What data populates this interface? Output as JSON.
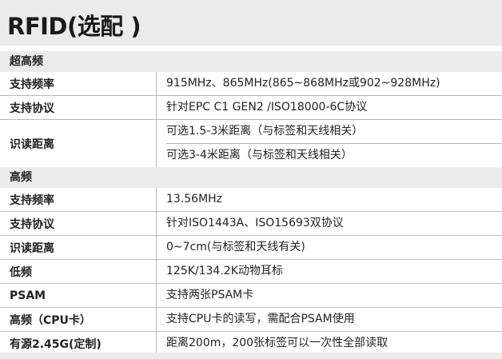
{
  "title": "RFID(选配 )",
  "sections": [
    {
      "header": "超高频",
      "rows": [
        {
          "label": "支持频率",
          "values": [
            "915MHz、865MHz(865~868MHz或902~928MHz)"
          ]
        },
        {
          "label": "支持协议",
          "values": [
            "针对EPC C1 GEN2 /ISO18000-6C协议"
          ]
        },
        {
          "label": "识读距离",
          "values": [
            "可选1.5-3米距离（与标签和天线相关）",
            "可选3-4米距离（与标签和天线相关）"
          ]
        }
      ]
    },
    {
      "header": "高频",
      "rows": [
        {
          "label": "支持频率",
          "values": [
            "13.56MHz"
          ]
        },
        {
          "label": "支持协议",
          "values": [
            "针对ISO1443A、ISO15693双协议"
          ]
        },
        {
          "label": "识读距离",
          "values": [
            "0~7cm(与标签和天线有关)"
          ]
        },
        {
          "label": "低频",
          "values": [
            "125K/134.2K动物耳标"
          ]
        },
        {
          "label": "PSAM",
          "values": [
            "支持两张PSAM卡"
          ]
        },
        {
          "label": "高频（CPU卡）",
          "values": [
            "支持CPU卡的读写，需配合PSAM使用"
          ]
        },
        {
          "label": "有源2.45G(定制)",
          "values": [
            "距离200m，200张标签可以一次性全部读取"
          ]
        }
      ]
    }
  ]
}
